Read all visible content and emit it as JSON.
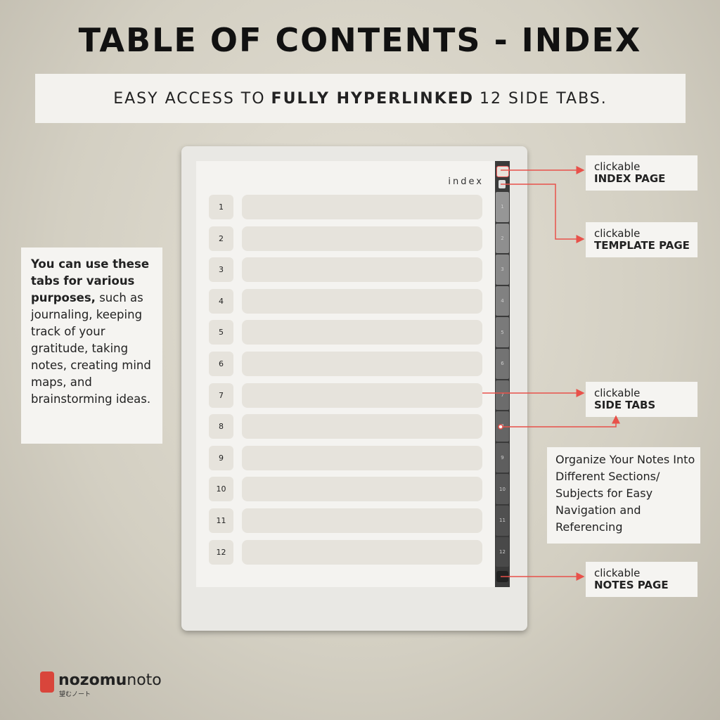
{
  "header": {
    "title": "TABLE OF CONTENTS - INDEX",
    "subtitle": {
      "before": "EASY ACCESS TO",
      "bold": "FULLY HYPERLINKED",
      "after": "12 SIDE TABS."
    }
  },
  "left_note": {
    "bold": "You can use these tabs for various purposes,",
    "text": "such as journaling, keeping track of your gratitude, taking notes, creating mind maps, and brainstorming ideas."
  },
  "device": {
    "page_title": "index",
    "rows": [
      1,
      2,
      3,
      4,
      5,
      6,
      7,
      8,
      9,
      10,
      11,
      12
    ],
    "side_tabs": [
      1,
      2,
      3,
      4,
      5,
      6,
      7,
      8,
      9,
      10,
      11,
      12
    ]
  },
  "callouts": [
    {
      "label": "clickable",
      "target": "INDEX PAGE"
    },
    {
      "label": "clickable",
      "target": "TEMPLATE PAGE"
    },
    {
      "label": "clickable",
      "target": "SIDE TABS"
    },
    {
      "label": "clickable",
      "target": "NOTES PAGE"
    }
  ],
  "right_note": "Organize Your Notes Into Different Sections/ Subjects for Easy Navigation and Referencing",
  "logo": {
    "brand_a": "nozomu",
    "brand_b": "noto",
    "tagline": "望むノート"
  }
}
